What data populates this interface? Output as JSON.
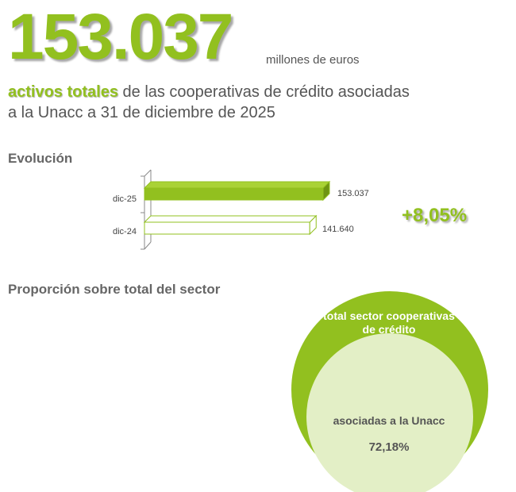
{
  "headline": {
    "value": "153.037",
    "unit": "millones de euros",
    "highlight": "activos totales",
    "rest": " de las cooperativas de crédito asociadas a la Unacc a 31 de diciembre de 2025"
  },
  "evolution": {
    "title": "Evolución",
    "change": "+8,05%"
  },
  "proportion": {
    "title": "Proporción sobre total del sector",
    "outer_label": "total sector cooperativas de crédito",
    "inner_label": "asociadas a la Unacc",
    "inner_value": "72,18%"
  },
  "colors": {
    "accent": "#92c01f",
    "accent_dark": "#6e9412",
    "light_green": "#e3efc6"
  },
  "chart_data": [
    {
      "type": "bar",
      "orientation": "horizontal",
      "categories": [
        "dic-25",
        "dic-24"
      ],
      "values": [
        153037,
        141640
      ],
      "value_labels": [
        "153.037",
        "141.640"
      ],
      "title": "Evolución"
    },
    {
      "type": "pie",
      "labels": [
        "total sector cooperativas de crédito",
        "asociadas a la Unacc"
      ],
      "values": [
        100,
        72.18
      ],
      "value_labels": [
        "",
        "72,18%"
      ],
      "title": "Proporción sobre total del sector"
    }
  ]
}
